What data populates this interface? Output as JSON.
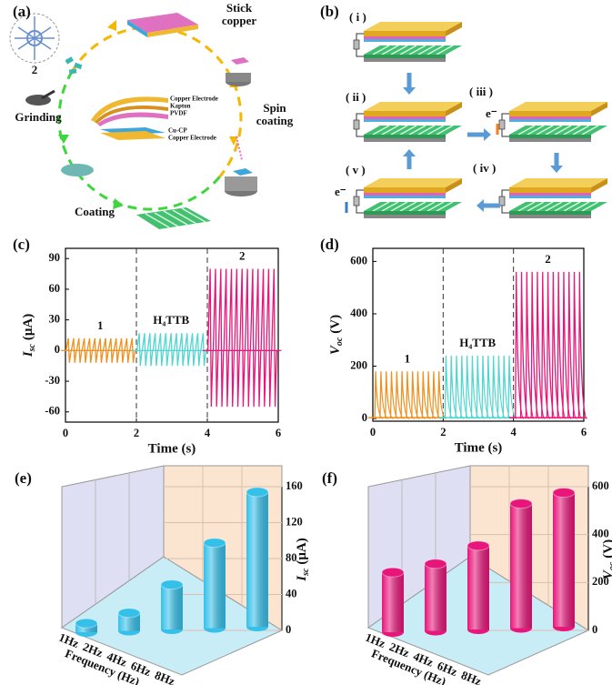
{
  "panel_labels": [
    "(a)",
    "(b)",
    "(c)",
    "(d)",
    "(e)",
    "(f)"
  ],
  "diagram_a": {
    "compound": "2",
    "stick_copper": [
      "Stick",
      "copper"
    ],
    "spin_coating": [
      "Spin",
      "coating"
    ],
    "grinding": "Grinding",
    "coating": "Coating",
    "layers_top": [
      "Copper Electrode",
      "Kapton",
      "PVDF"
    ],
    "layers_bottom": [
      "Cu-CP",
      "Copper Electrode"
    ]
  },
  "diagram_b": {
    "stages": [
      "( i )",
      "( ii )",
      "( iii )",
      "( iv )",
      "( v )"
    ],
    "electron": "e⁻"
  },
  "chart_data": [
    {
      "type": "pulse",
      "x_label": "Time (s)",
      "y_label": "I",
      "y_label_sub": "sc",
      "y_label_unit": "(μA)",
      "xlim": [
        0,
        6
      ],
      "xticks": [
        0,
        2,
        4,
        6
      ],
      "ylim": [
        -70,
        100
      ],
      "yticks": [
        -60,
        -30,
        0,
        30,
        60,
        90
      ],
      "dividers": [
        2,
        4
      ],
      "series": [
        {
          "name": "1",
          "color": "#f0901e",
          "x": [
            0.08,
            0.23,
            0.38,
            0.53,
            0.68,
            0.83,
            0.98,
            1.13,
            1.28,
            1.43,
            1.58,
            1.73,
            1.88
          ],
          "values": [
            12,
            12,
            12,
            12,
            12,
            12,
            12,
            12,
            12,
            12,
            12,
            12,
            12
          ],
          "min_values": [
            -12,
            -12,
            -12,
            -12,
            -12,
            -12,
            -12,
            -12,
            -12,
            -12,
            -12,
            -12,
            -12
          ]
        },
        {
          "name": "H₄TTB",
          "color": "#4fd6cf",
          "x": [
            2.08,
            2.23,
            2.38,
            2.53,
            2.68,
            2.83,
            2.98,
            3.13,
            3.28,
            3.43,
            3.58,
            3.73,
            3.88
          ],
          "values": [
            17,
            17,
            17,
            17,
            17,
            17,
            17,
            17,
            17,
            17,
            17,
            17,
            17
          ],
          "min_values": [
            -15,
            -15,
            -15,
            -15,
            -15,
            -15,
            -15,
            -15,
            -15,
            -15,
            -15,
            -15,
            -15
          ]
        },
        {
          "name": "2",
          "color": "#e8157a",
          "x": [
            4.08,
            4.23,
            4.38,
            4.53,
            4.68,
            4.83,
            4.98,
            5.13,
            5.28,
            5.43,
            5.58,
            5.73,
            5.88
          ],
          "values": [
            80,
            80,
            80,
            80,
            80,
            80,
            80,
            80,
            80,
            80,
            80,
            80,
            80
          ],
          "min_values": [
            -55,
            -55,
            -55,
            -55,
            -55,
            -55,
            -55,
            -55,
            -55,
            -55,
            -55,
            -55,
            -55
          ]
        }
      ]
    },
    {
      "type": "pulse_decay",
      "x_label": "Time (s)",
      "y_label": "V",
      "y_label_sub": "oc",
      "y_label_unit": "(V)",
      "xlim": [
        0,
        6
      ],
      "xticks": [
        0,
        2,
        4,
        6
      ],
      "ylim": [
        -10,
        650
      ],
      "yticks": [
        0,
        200,
        400,
        600
      ],
      "dividers": [
        2,
        4
      ],
      "series": [
        {
          "name": "1",
          "color": "#f0901e",
          "x": [
            0.08,
            0.23,
            0.38,
            0.53,
            0.68,
            0.83,
            0.98,
            1.13,
            1.28,
            1.43,
            1.58,
            1.73,
            1.88
          ],
          "values": [
            180,
            180,
            180,
            180,
            180,
            180,
            180,
            180,
            180,
            180,
            180,
            180,
            180
          ]
        },
        {
          "name": "H₄TTB",
          "color": "#4fd6cf",
          "x": [
            2.08,
            2.23,
            2.38,
            2.53,
            2.68,
            2.83,
            2.98,
            3.13,
            3.28,
            3.43,
            3.58,
            3.73,
            3.88
          ],
          "values": [
            240,
            240,
            240,
            240,
            240,
            240,
            240,
            240,
            240,
            240,
            240,
            240,
            240
          ]
        },
        {
          "name": "2",
          "color": "#e8157a",
          "x": [
            4.08,
            4.23,
            4.38,
            4.53,
            4.68,
            4.83,
            4.98,
            5.13,
            5.28,
            5.43,
            5.58,
            5.73,
            5.88
          ],
          "values": [
            560,
            560,
            560,
            560,
            560,
            560,
            560,
            560,
            560,
            560,
            560,
            560,
            560
          ]
        }
      ]
    },
    {
      "type": "bar3d",
      "x_label": "Frequency (Hz)",
      "y_label": "I",
      "y_label_sub": "sc",
      "y_label_unit": "(μA)",
      "categories": [
        "1Hz",
        "2Hz",
        "4Hz",
        "6Hz",
        "8Hz"
      ],
      "values": [
        10,
        20,
        50,
        95,
        150
      ],
      "color": "#35c0ea",
      "ylim": [
        0,
        160
      ],
      "yticks": [
        0,
        40,
        80,
        120,
        160
      ]
    },
    {
      "type": "bar3d",
      "x_label": "Frequency (Hz)",
      "y_label": "V",
      "y_label_sub": "oc",
      "y_label_unit": "(V)",
      "categories": [
        "1Hz",
        "2Hz",
        "4Hz",
        "6Hz",
        "8Hz"
      ],
      "values": [
        250,
        280,
        350,
        520,
        560
      ],
      "color": "#e8157a",
      "ylim": [
        0,
        600
      ],
      "yticks": [
        0,
        200,
        400,
        600
      ]
    }
  ]
}
